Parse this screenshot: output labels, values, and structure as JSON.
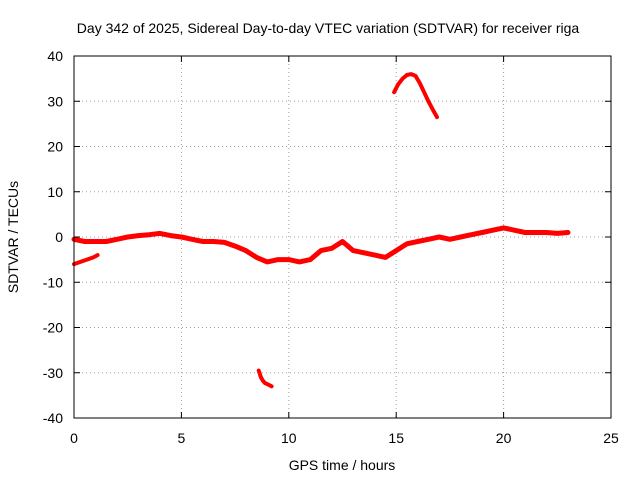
{
  "chart_data": {
    "type": "line",
    "title": "Day 342 of 2025, Sidereal Day-to-day VTEC variation (SDTVAR) for receiver riga",
    "xlabel": "GPS time / hours",
    "ylabel": "SDTVAR / TECUs",
    "xlim": [
      0,
      25
    ],
    "ylim": [
      -40,
      40
    ],
    "xticks": [
      0,
      5,
      10,
      15,
      20,
      25
    ],
    "yticks": [
      -40,
      -30,
      -20,
      -10,
      0,
      10,
      20,
      30,
      40
    ],
    "xtick_labels": [
      "0",
      "5",
      "10",
      "15",
      "20",
      "25"
    ],
    "ytick_labels": [
      "-40",
      "-30",
      "-20",
      "-10",
      "0",
      "10",
      "20",
      "30",
      "40"
    ],
    "grid": true,
    "color": "#ff0000",
    "series": [
      {
        "name": "main",
        "x": [
          0,
          0.5,
          1,
          1.5,
          2,
          2.5,
          3,
          3.5,
          4,
          4.5,
          5,
          5.5,
          6,
          6.5,
          7,
          7.5,
          8,
          8.5,
          9,
          9.5,
          10,
          10.5,
          11,
          11.5,
          12,
          12.5,
          13,
          13.5,
          14,
          14.5,
          15,
          15.5,
          16,
          16.5,
          17,
          17.5,
          18,
          18.5,
          19,
          19.5,
          20,
          20.5,
          21,
          21.5,
          22,
          22.5,
          23
        ],
        "y": [
          -0.5,
          -1,
          -1,
          -1,
          -0.5,
          0,
          0.3,
          0.5,
          0.8,
          0.3,
          0,
          -0.5,
          -1,
          -1,
          -1.2,
          -2,
          -3,
          -4.5,
          -5.5,
          -5,
          -5,
          -5.5,
          -5,
          -3,
          -2.5,
          -1,
          -3,
          -3.5,
          -4,
          -4.5,
          -3,
          -1.5,
          -1,
          -0.5,
          0,
          -0.5,
          0,
          0.5,
          1,
          1.5,
          2,
          1.5,
          1,
          1,
          1,
          0.8,
          1
        ]
      },
      {
        "name": "segment-early-low",
        "x": [
          0,
          0.3,
          0.6,
          0.9,
          1.1
        ],
        "y": [
          -6,
          -5.5,
          -5,
          -4.5,
          -4
        ]
      },
      {
        "name": "segment-high-arc",
        "x": [
          14.9,
          15.1,
          15.3,
          15.5,
          15.7,
          15.9,
          16.1,
          16.3,
          16.5,
          16.7,
          16.9
        ],
        "y": [
          32,
          33.8,
          35,
          35.8,
          36,
          35.6,
          34,
          32,
          30,
          28.2,
          26.5
        ]
      },
      {
        "name": "segment-low-dip",
        "x": [
          8.6,
          8.7,
          8.8,
          8.9,
          9.0,
          9.2
        ],
        "y": [
          -29.5,
          -31,
          -31.8,
          -32.3,
          -32.5,
          -33
        ]
      }
    ]
  }
}
